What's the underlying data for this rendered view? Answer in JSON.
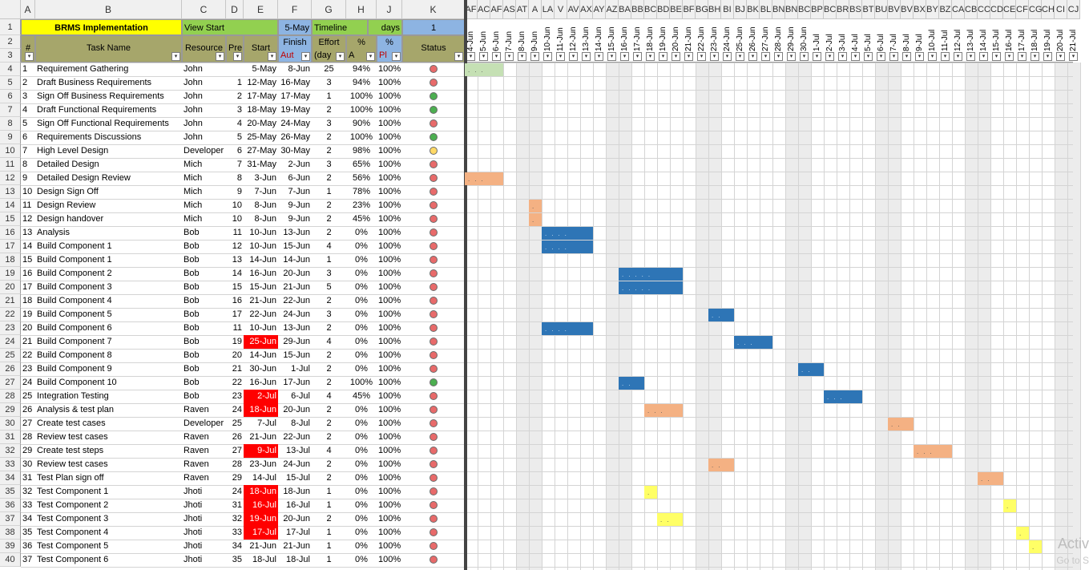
{
  "columns": [
    "A",
    "B",
    "C",
    "D",
    "E",
    "F",
    "G",
    "H",
    "J",
    "K"
  ],
  "gantt_col_letters": [
    "AF",
    "AC",
    "AF",
    "AS",
    "AT",
    "A",
    "LA",
    "V",
    "AV",
    "AX",
    "AY",
    "AZ",
    "BA",
    "BB",
    "BC",
    "BD",
    "BE",
    "BF",
    "BG",
    "BH",
    "BI",
    "BJ",
    "BK",
    "BL",
    "BN",
    "BN",
    "BC",
    "BP",
    "BC",
    "BR",
    "BS",
    "BT",
    "BU",
    "BV",
    "BV",
    "BX",
    "BY",
    "BZ",
    "CA",
    "CB",
    "CC",
    "CD",
    "CE",
    "CF",
    "CG",
    "CH",
    "CI",
    "CJ"
  ],
  "row_numbers": [
    "1",
    "2",
    "3",
    "4",
    "5",
    "6",
    "7",
    "8",
    "9",
    "10",
    "11",
    "12",
    "13",
    "14",
    "15",
    "16",
    "17",
    "18",
    "19",
    "20",
    "21",
    "22",
    "23",
    "24",
    "25",
    "26",
    "27",
    "28",
    "29",
    "30",
    "31",
    "32",
    "33",
    "34",
    "35",
    "36",
    "37",
    "38",
    "39",
    "40"
  ],
  "header": {
    "project_title": "BRMS Implementation",
    "view_start_label": "View Start",
    "view_start_value": "5-May",
    "timeline_label": "Timeline",
    "timeline_unit": "days",
    "timeline_value": "1",
    "col_num": "#",
    "col_task": "Task Name",
    "col_resource": "Resource",
    "col_pre": "Pre",
    "col_start": "Start",
    "col_finish": "Finish",
    "col_finish_sub": "Aut",
    "col_effort": "Effort",
    "col_effort_sub": "(day",
    "col_pct_a": "%",
    "col_pct_a_sub": "A",
    "col_pct_p": "%",
    "col_pct_p_sub": "Pl",
    "col_status": "Status"
  },
  "dates": [
    "4-Jun",
    "5-Jun",
    "6-Jun",
    "7-Jun",
    "8-Jun",
    "9-Jun",
    "10-Jun",
    "11-Jun",
    "12-Jun",
    "13-Jun",
    "14-Jun",
    "15-Jun",
    "16-Jun",
    "17-Jun",
    "18-Jun",
    "19-Jun",
    "20-Jun",
    "21-Jun",
    "22-Jun",
    "23-Jun",
    "24-Jun",
    "25-Jun",
    "26-Jun",
    "27-Jun",
    "28-Jun",
    "29-Jun",
    "30-Jun",
    "1-Jul",
    "2-Jul",
    "3-Jul",
    "4-Jul",
    "5-Jul",
    "6-Jul",
    "7-Jul",
    "8-Jul",
    "9-Jul",
    "10-Jul",
    "11-Jul",
    "12-Jul",
    "13-Jul",
    "14-Jul",
    "15-Jul",
    "16-Jul",
    "17-Jul",
    "18-Jul",
    "19-Jul",
    "20-Jul",
    "21-Jul"
  ],
  "tasks": [
    {
      "num": "1",
      "name": "Requirement Gathering",
      "res": "John",
      "pre": "",
      "start": "5-May",
      "finish": "8-Jun",
      "effort": "25",
      "pa": "94%",
      "pp": "100%",
      "status": "red",
      "late": false
    },
    {
      "num": "2",
      "name": "Draft Business Requirements",
      "res": "John",
      "pre": "1",
      "start": "12-May",
      "finish": "16-May",
      "effort": "3",
      "pa": "94%",
      "pp": "100%",
      "status": "red",
      "late": false
    },
    {
      "num": "3",
      "name": "Sign Off Business Requirements",
      "res": "John",
      "pre": "2",
      "start": "17-May",
      "finish": "17-May",
      "effort": "1",
      "pa": "100%",
      "pp": "100%",
      "status": "green",
      "late": false
    },
    {
      "num": "4",
      "name": "Draft Functional Requirements",
      "res": "John",
      "pre": "3",
      "start": "18-May",
      "finish": "19-May",
      "effort": "2",
      "pa": "100%",
      "pp": "100%",
      "status": "green",
      "late": false
    },
    {
      "num": "5",
      "name": "Sign Off Functional Requirements",
      "res": "John",
      "pre": "4",
      "start": "20-May",
      "finish": "24-May",
      "effort": "3",
      "pa": "90%",
      "pp": "100%",
      "status": "red",
      "late": false
    },
    {
      "num": "6",
      "name": "Requirements Discussions",
      "res": "John",
      "pre": "5",
      "start": "25-May",
      "finish": "26-May",
      "effort": "2",
      "pa": "100%",
      "pp": "100%",
      "status": "green",
      "late": false
    },
    {
      "num": "7",
      "name": "High Level Design",
      "res": "Developer",
      "pre": "6",
      "start": "27-May",
      "finish": "30-May",
      "effort": "2",
      "pa": "98%",
      "pp": "100%",
      "status": "yellow",
      "late": false
    },
    {
      "num": "8",
      "name": "Detailed Design",
      "res": "Mich",
      "pre": "7",
      "start": "31-May",
      "finish": "2-Jun",
      "effort": "3",
      "pa": "65%",
      "pp": "100%",
      "status": "red",
      "late": false
    },
    {
      "num": "9",
      "name": "Detailed Design Review",
      "res": "Mich",
      "pre": "8",
      "start": "3-Jun",
      "finish": "6-Jun",
      "effort": "2",
      "pa": "56%",
      "pp": "100%",
      "status": "red",
      "late": false
    },
    {
      "num": "10",
      "name": "Design Sign Off",
      "res": "Mich",
      "pre": "9",
      "start": "7-Jun",
      "finish": "7-Jun",
      "effort": "1",
      "pa": "78%",
      "pp": "100%",
      "status": "red",
      "late": false
    },
    {
      "num": "11",
      "name": "Design Review",
      "res": "Mich",
      "pre": "10",
      "start": "8-Jun",
      "finish": "9-Jun",
      "effort": "2",
      "pa": "23%",
      "pp": "100%",
      "status": "red",
      "late": false
    },
    {
      "num": "12",
      "name": "Design handover",
      "res": "Mich",
      "pre": "10",
      "start": "8-Jun",
      "finish": "9-Jun",
      "effort": "2",
      "pa": "45%",
      "pp": "100%",
      "status": "red",
      "late": false
    },
    {
      "num": "13",
      "name": "Analysis",
      "res": "Bob",
      "pre": "11",
      "start": "10-Jun",
      "finish": "13-Jun",
      "effort": "2",
      "pa": "0%",
      "pp": "100%",
      "status": "red",
      "late": false
    },
    {
      "num": "14",
      "name": "Build Component 1",
      "res": "Bob",
      "pre": "12",
      "start": "10-Jun",
      "finish": "15-Jun",
      "effort": "4",
      "pa": "0%",
      "pp": "100%",
      "status": "red",
      "late": false
    },
    {
      "num": "15",
      "name": "Build Component 1",
      "res": "Bob",
      "pre": "13",
      "start": "14-Jun",
      "finish": "14-Jun",
      "effort": "1",
      "pa": "0%",
      "pp": "100%",
      "status": "red",
      "late": false
    },
    {
      "num": "16",
      "name": "Build Component 2",
      "res": "Bob",
      "pre": "14",
      "start": "16-Jun",
      "finish": "20-Jun",
      "effort": "3",
      "pa": "0%",
      "pp": "100%",
      "status": "red",
      "late": false
    },
    {
      "num": "17",
      "name": "Build Component 3",
      "res": "Bob",
      "pre": "15",
      "start": "15-Jun",
      "finish": "21-Jun",
      "effort": "5",
      "pa": "0%",
      "pp": "100%",
      "status": "red",
      "late": false
    },
    {
      "num": "18",
      "name": "Build Component 4",
      "res": "Bob",
      "pre": "16",
      "start": "21-Jun",
      "finish": "22-Jun",
      "effort": "2",
      "pa": "0%",
      "pp": "100%",
      "status": "red",
      "late": false
    },
    {
      "num": "19",
      "name": "Build Component 5",
      "res": "Bob",
      "pre": "17",
      "start": "22-Jun",
      "finish": "24-Jun",
      "effort": "3",
      "pa": "0%",
      "pp": "100%",
      "status": "red",
      "late": false
    },
    {
      "num": "20",
      "name": "Build Component 6",
      "res": "Bob",
      "pre": "11",
      "start": "10-Jun",
      "finish": "13-Jun",
      "effort": "2",
      "pa": "0%",
      "pp": "100%",
      "status": "red",
      "late": false
    },
    {
      "num": "21",
      "name": "Build Component 7",
      "res": "Bob",
      "pre": "19",
      "start": "25-Jun",
      "finish": "29-Jun",
      "effort": "4",
      "pa": "0%",
      "pp": "100%",
      "status": "red",
      "late": true
    },
    {
      "num": "22",
      "name": "Build Component 8",
      "res": "Bob",
      "pre": "20",
      "start": "14-Jun",
      "finish": "15-Jun",
      "effort": "2",
      "pa": "0%",
      "pp": "100%",
      "status": "red",
      "late": false
    },
    {
      "num": "23",
      "name": "Build Component 9",
      "res": "Bob",
      "pre": "21",
      "start": "30-Jun",
      "finish": "1-Jul",
      "effort": "2",
      "pa": "0%",
      "pp": "100%",
      "status": "red",
      "late": false
    },
    {
      "num": "24",
      "name": "Build Component 10",
      "res": "Bob",
      "pre": "22",
      "start": "16-Jun",
      "finish": "17-Jun",
      "effort": "2",
      "pa": "100%",
      "pp": "100%",
      "status": "green",
      "late": false
    },
    {
      "num": "25",
      "name": "Integration Testing",
      "res": "Bob",
      "pre": "23",
      "start": "2-Jul",
      "finish": "6-Jul",
      "effort": "4",
      "pa": "45%",
      "pp": "100%",
      "status": "red",
      "late": true
    },
    {
      "num": "26",
      "name": "Analysis & test plan",
      "res": "Raven",
      "pre": "24",
      "start": "18-Jun",
      "finish": "20-Jun",
      "effort": "2",
      "pa": "0%",
      "pp": "100%",
      "status": "red",
      "late": true
    },
    {
      "num": "27",
      "name": "Create test cases",
      "res": "Developer",
      "pre": "25",
      "start": "7-Jul",
      "finish": "8-Jul",
      "effort": "2",
      "pa": "0%",
      "pp": "100%",
      "status": "red",
      "late": false
    },
    {
      "num": "28",
      "name": "Review test cases",
      "res": "Raven",
      "pre": "26",
      "start": "21-Jun",
      "finish": "22-Jun",
      "effort": "2",
      "pa": "0%",
      "pp": "100%",
      "status": "red",
      "late": false
    },
    {
      "num": "29",
      "name": "Create test steps",
      "res": "Raven",
      "pre": "27",
      "start": "9-Jul",
      "finish": "13-Jul",
      "effort": "4",
      "pa": "0%",
      "pp": "100%",
      "status": "red",
      "late": true
    },
    {
      "num": "30",
      "name": "Review test cases",
      "res": "Raven",
      "pre": "28",
      "start": "23-Jun",
      "finish": "24-Jun",
      "effort": "2",
      "pa": "0%",
      "pp": "100%",
      "status": "red",
      "late": false
    },
    {
      "num": "31",
      "name": "Test Plan sign off",
      "res": "Raven",
      "pre": "29",
      "start": "14-Jul",
      "finish": "15-Jul",
      "effort": "2",
      "pa": "0%",
      "pp": "100%",
      "status": "red",
      "late": false
    },
    {
      "num": "32",
      "name": "Test Component 1",
      "res": "Jhoti",
      "pre": "24",
      "start": "18-Jun",
      "finish": "18-Jun",
      "effort": "1",
      "pa": "0%",
      "pp": "100%",
      "status": "red",
      "late": true
    },
    {
      "num": "33",
      "name": "Test Component 2",
      "res": "Jhoti",
      "pre": "31",
      "start": "16-Jul",
      "finish": "16-Jul",
      "effort": "1",
      "pa": "0%",
      "pp": "100%",
      "status": "red",
      "late": true
    },
    {
      "num": "34",
      "name": "Test Component 3",
      "res": "Jhoti",
      "pre": "32",
      "start": "19-Jun",
      "finish": "20-Jun",
      "effort": "2",
      "pa": "0%",
      "pp": "100%",
      "status": "red",
      "late": true
    },
    {
      "num": "35",
      "name": "Test Component 4",
      "res": "Jhoti",
      "pre": "33",
      "start": "17-Jul",
      "finish": "17-Jul",
      "effort": "1",
      "pa": "0%",
      "pp": "100%",
      "status": "red",
      "late": true
    },
    {
      "num": "36",
      "name": "Test Component 5",
      "res": "Jhoti",
      "pre": "34",
      "start": "21-Jun",
      "finish": "21-Jun",
      "effort": "1",
      "pa": "0%",
      "pp": "100%",
      "status": "red",
      "late": false
    },
    {
      "num": "37",
      "name": "Test Component 6",
      "res": "Jhoti",
      "pre": "35",
      "start": "18-Jul",
      "finish": "18-Jul",
      "effort": "1",
      "pa": "0%",
      "pp": "100%",
      "status": "red",
      "late": false
    }
  ],
  "gantt_bars": [
    {
      "row": 0,
      "start": "4-Jun",
      "days": 3,
      "color": "green"
    },
    {
      "row": 8,
      "start": "4-Jun",
      "days": 3,
      "color": "orange"
    },
    {
      "row": 10,
      "start": "9-Jun",
      "days": 1,
      "color": "orange"
    },
    {
      "row": 11,
      "start": "9-Jun",
      "days": 1,
      "color": "orange"
    },
    {
      "row": 12,
      "start": "10-Jun",
      "days": 4,
      "color": "blue"
    },
    {
      "row": 13,
      "start": "10-Jun",
      "days": 4,
      "color": "blue"
    },
    {
      "row": 15,
      "start": "16-Jun",
      "days": 5,
      "color": "blue"
    },
    {
      "row": 16,
      "start": "16-Jun",
      "days": 5,
      "color": "blue"
    },
    {
      "row": 18,
      "start": "23-Jun",
      "days": 2,
      "color": "blue"
    },
    {
      "row": 19,
      "start": "10-Jun",
      "days": 4,
      "color": "blue"
    },
    {
      "row": 20,
      "start": "25-Jun",
      "days": 3,
      "color": "blue"
    },
    {
      "row": 22,
      "start": "30-Jun",
      "days": 2,
      "color": "blue"
    },
    {
      "row": 23,
      "start": "16-Jun",
      "days": 2,
      "color": "blue"
    },
    {
      "row": 24,
      "start": "2-Jul",
      "days": 3,
      "color": "blue"
    },
    {
      "row": 25,
      "start": "18-Jun",
      "days": 3,
      "color": "orange"
    },
    {
      "row": 26,
      "start": "7-Jul",
      "days": 2,
      "color": "orange"
    },
    {
      "row": 28,
      "start": "9-Jul",
      "days": 3,
      "color": "orange"
    },
    {
      "row": 29,
      "start": "23-Jun",
      "days": 2,
      "color": "orange"
    },
    {
      "row": 30,
      "start": "14-Jul",
      "days": 2,
      "color": "orange"
    },
    {
      "row": 31,
      "start": "18-Jun",
      "days": 1,
      "color": "yellow"
    },
    {
      "row": 32,
      "start": "16-Jul",
      "days": 1,
      "color": "yellow"
    },
    {
      "row": 33,
      "start": "19-Jun",
      "days": 2,
      "color": "yellow"
    },
    {
      "row": 34,
      "start": "17-Jul",
      "days": 1,
      "color": "yellow"
    },
    {
      "row": 35,
      "start": "18-Jul",
      "days": 1,
      "color": "yellow"
    }
  ],
  "weekend_dates": [
    "8-Jun",
    "9-Jun",
    "15-Jun",
    "16-Jun",
    "22-Jun",
    "23-Jun",
    "29-Jun",
    "30-Jun",
    "6-Jul",
    "7-Jul",
    "13-Jul",
    "14-Jul",
    "20-Jul",
    "21-Jul"
  ],
  "colors": {
    "title_yellow": "#ffff00",
    "view_start_green": "#92d050",
    "date_blue": "#8db4e2",
    "olive_header": "#a6a66b",
    "status_header": "#8db4e2",
    "late_red": "#ff0000",
    "bar_blue": "#2e75b6",
    "bar_orange": "#f4b183",
    "bar_green": "#c5e0b4",
    "bar_yellow": "#ffff66",
    "status_red": "#e86a6a",
    "status_green": "#4caf50",
    "status_yellow": "#ffd966",
    "weekend_gray": "#ececec"
  },
  "watermark": {
    "line1": "Activ",
    "line2": "Go to S"
  }
}
